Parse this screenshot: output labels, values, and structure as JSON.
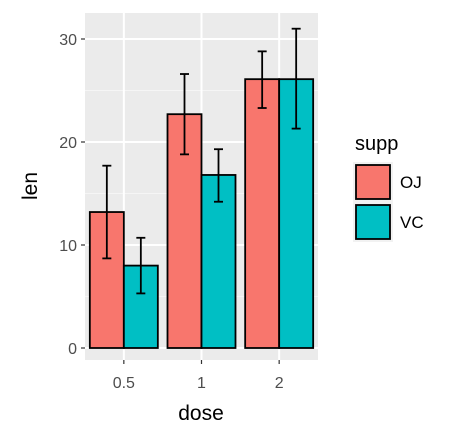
{
  "chart_data": {
    "type": "bar",
    "xlabel": "dose",
    "ylabel": "len",
    "categories": [
      "0.5",
      "1",
      "2"
    ],
    "ylim": [
      0,
      33
    ],
    "yticks": [
      0,
      10,
      20,
      30
    ],
    "grid": true,
    "legend": {
      "title": "supp",
      "placement": "right"
    },
    "series": [
      {
        "name": "OJ",
        "color": "#F8766D",
        "values": [
          13.2,
          22.7,
          26.1
        ],
        "error_low": [
          8.7,
          18.8,
          23.3
        ],
        "error_high": [
          17.7,
          26.6,
          28.8
        ]
      },
      {
        "name": "VC",
        "color": "#00BFC4",
        "values": [
          8.0,
          16.8,
          26.1
        ],
        "error_low": [
          5.3,
          14.2,
          21.3
        ],
        "error_high": [
          10.7,
          19.3,
          31.0
        ]
      }
    ]
  }
}
